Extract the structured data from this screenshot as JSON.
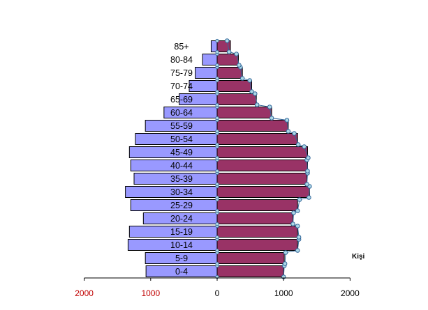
{
  "chart_data": {
    "type": "bar",
    "orientation": "horizontal",
    "subtype": "population-pyramid",
    "categories": [
      "0-4",
      "5-9",
      "10-14",
      "15-19",
      "20-24",
      "25-29",
      "30-34",
      "35-39",
      "40-44",
      "45-49",
      "50-54",
      "55-59",
      "60-64",
      "65-69",
      "70-74",
      "75-79",
      "80-84",
      "85+"
    ],
    "series": [
      {
        "values": [
          1070,
          1080,
          1340,
          1320,
          1110,
          1300,
          1380,
          1250,
          1300,
          1320,
          1230,
          1080,
          800,
          570,
          420,
          330,
          220,
          90
        ],
        "color": "#9999ff",
        "side": "left"
      },
      {
        "values": [
          1000,
          1010,
          1210,
          1210,
          1140,
          1210,
          1390,
          1350,
          1360,
          1360,
          1210,
          1070,
          820,
          590,
          520,
          380,
          320,
          200
        ],
        "color": "#993366",
        "side": "right",
        "markers": [
          [
            1000,
            1010
          ],
          [
            1020,
            1030
          ],
          [
            1210,
            1230
          ],
          [
            1230,
            1210
          ],
          [
            1140,
            1150
          ],
          [
            1210,
            1240
          ],
          [
            1380,
            1390
          ],
          [
            1350,
            1360
          ],
          [
            1360,
            1350
          ],
          [
            1370,
            1310
          ],
          [
            1220,
            1160
          ],
          [
            1070,
            1050
          ],
          [
            820,
            790
          ],
          [
            600,
            570
          ],
          [
            520,
            490
          ],
          [
            380,
            350
          ],
          [
            330,
            290
          ],
          [
            180,
            150
          ]
        ]
      }
    ],
    "xaxis": {
      "range": [
        -2000,
        2000
      ],
      "ticks": [
        -2000,
        -1000,
        0,
        1000,
        2000
      ],
      "tick_labels": [
        "2000",
        "1000",
        "0",
        "1000",
        "2000"
      ],
      "left_tick_color": "#c00000",
      "right_tick_color": "#000000"
    },
    "unit_label": "Kişi",
    "grid": false,
    "legend": "none",
    "colors": {
      "left_fill": "#9999ff",
      "right_fill": "#993366",
      "bar_outline": "#000000",
      "marker_fill": "#add8e6",
      "marker_stroke": "#336699"
    }
  }
}
